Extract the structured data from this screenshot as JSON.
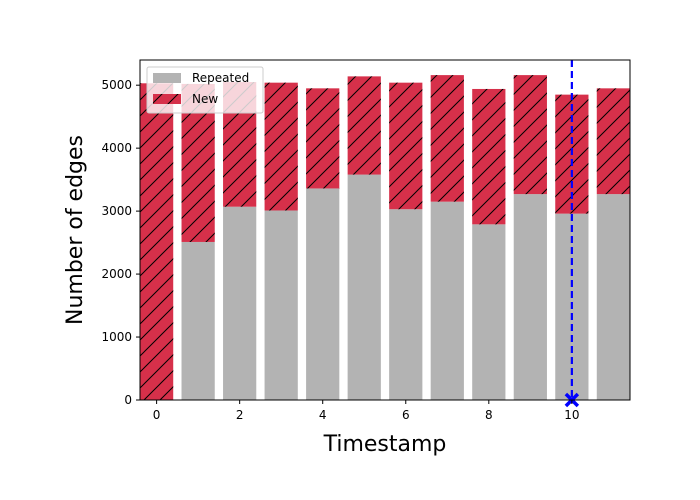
{
  "chart_data": {
    "type": "bar",
    "stacked": true,
    "xlabel": "Timestamp",
    "ylabel": "Number of edges",
    "x": [
      0,
      1,
      2,
      3,
      4,
      5,
      6,
      7,
      8,
      9,
      10,
      11
    ],
    "series": [
      {
        "name": "Repeated",
        "color": "#b3b3b3",
        "values": [
          0,
          2510,
          3070,
          3010,
          3360,
          3580,
          3030,
          3150,
          2790,
          3270,
          2960,
          3270
        ]
      },
      {
        "name": "New",
        "color": "#d6304a",
        "hatch": "diagonal",
        "values": [
          5030,
          2510,
          1980,
          2030,
          1590,
          1560,
          2010,
          2010,
          2150,
          1890,
          1890,
          1680
        ]
      }
    ],
    "xlim": [
      -0.4,
      11.4
    ],
    "ylim": [
      0,
      5400
    ],
    "xticks": [
      0,
      2,
      4,
      6,
      8,
      10
    ],
    "yticks": [
      0,
      1000,
      2000,
      3000,
      4000,
      5000
    ],
    "marker": {
      "x": 10,
      "y": 0,
      "symbol": "x",
      "color": "#0000ff",
      "vline": true
    },
    "legend": "top-left",
    "grid": false
  }
}
